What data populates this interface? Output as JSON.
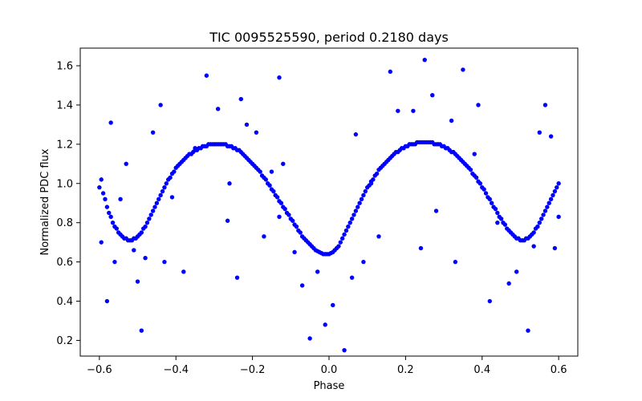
{
  "chart_data": {
    "type": "scatter",
    "title": "TIC 0095525590, period 0.2180 days",
    "xlabel": "Phase",
    "ylabel": "Normalized PDC flux",
    "xlim": [
      -0.65,
      0.65
    ],
    "ylim": [
      0.12,
      1.69
    ],
    "xticks": [
      -0.6,
      -0.4,
      -0.2,
      0.0,
      0.2,
      0.4,
      0.6
    ],
    "xtick_labels": [
      "−0.6",
      "−0.4",
      "−0.2",
      "0.0",
      "0.2",
      "0.4",
      "0.6"
    ],
    "yticks": [
      0.2,
      0.4,
      0.6,
      0.8,
      1.0,
      1.2,
      1.4,
      1.6
    ],
    "ytick_labels": [
      "0.2",
      "0.4",
      "0.6",
      "0.8",
      "1.0",
      "1.2",
      "1.4",
      "1.6"
    ],
    "grid": false,
    "legend": "none",
    "series": [
      {
        "marker_color": "#0000ff",
        "points": [
          [
            -0.6,
            0.98
          ],
          [
            -0.595,
            1.02
          ],
          [
            -0.59,
            0.95
          ],
          [
            -0.585,
            0.92
          ],
          [
            -0.58,
            0.88
          ],
          [
            -0.575,
            0.85
          ],
          [
            -0.57,
            0.83
          ],
          [
            -0.565,
            0.8
          ],
          [
            -0.56,
            0.78
          ],
          [
            -0.555,
            0.77
          ],
          [
            -0.55,
            0.75
          ],
          [
            -0.545,
            0.74
          ],
          [
            -0.54,
            0.73
          ],
          [
            -0.535,
            0.72
          ],
          [
            -0.53,
            0.72
          ],
          [
            -0.525,
            0.71
          ],
          [
            -0.52,
            0.71
          ],
          [
            -0.515,
            0.71
          ],
          [
            -0.51,
            0.72
          ],
          [
            -0.505,
            0.72
          ],
          [
            -0.5,
            0.73
          ],
          [
            -0.495,
            0.74
          ],
          [
            -0.49,
            0.75
          ],
          [
            -0.485,
            0.77
          ],
          [
            -0.48,
            0.78
          ],
          [
            -0.475,
            0.8
          ],
          [
            -0.47,
            0.82
          ],
          [
            -0.465,
            0.84
          ],
          [
            -0.46,
            0.86
          ],
          [
            -0.455,
            0.88
          ],
          [
            -0.45,
            0.9
          ],
          [
            -0.445,
            0.92
          ],
          [
            -0.44,
            0.94
          ],
          [
            -0.435,
            0.96
          ],
          [
            -0.43,
            0.98
          ],
          [
            -0.425,
            1.0
          ],
          [
            -0.42,
            1.02
          ],
          [
            -0.415,
            1.03
          ],
          [
            -0.41,
            1.05
          ],
          [
            -0.405,
            1.06
          ],
          [
            -0.4,
            1.08
          ],
          [
            -0.395,
            1.09
          ],
          [
            -0.39,
            1.1
          ],
          [
            -0.385,
            1.11
          ],
          [
            -0.38,
            1.12
          ],
          [
            -0.375,
            1.13
          ],
          [
            -0.37,
            1.14
          ],
          [
            -0.365,
            1.15
          ],
          [
            -0.36,
            1.15
          ],
          [
            -0.355,
            1.16
          ],
          [
            -0.35,
            1.17
          ],
          [
            -0.345,
            1.17
          ],
          [
            -0.34,
            1.18
          ],
          [
            -0.335,
            1.18
          ],
          [
            -0.33,
            1.19
          ],
          [
            -0.325,
            1.19
          ],
          [
            -0.32,
            1.19
          ],
          [
            -0.315,
            1.2
          ],
          [
            -0.31,
            1.2
          ],
          [
            -0.305,
            1.2
          ],
          [
            -0.3,
            1.2
          ],
          [
            -0.295,
            1.2
          ],
          [
            -0.29,
            1.2
          ],
          [
            -0.285,
            1.2
          ],
          [
            -0.28,
            1.2
          ],
          [
            -0.275,
            1.2
          ],
          [
            -0.27,
            1.2
          ],
          [
            -0.265,
            1.19
          ],
          [
            -0.26,
            1.19
          ],
          [
            -0.255,
            1.19
          ],
          [
            -0.25,
            1.18
          ],
          [
            -0.245,
            1.18
          ],
          [
            -0.24,
            1.17
          ],
          [
            -0.235,
            1.17
          ],
          [
            -0.23,
            1.16
          ],
          [
            -0.225,
            1.15
          ],
          [
            -0.22,
            1.14
          ],
          [
            -0.215,
            1.13
          ],
          [
            -0.21,
            1.12
          ],
          [
            -0.205,
            1.11
          ],
          [
            -0.2,
            1.1
          ],
          [
            -0.195,
            1.09
          ],
          [
            -0.19,
            1.08
          ],
          [
            -0.185,
            1.07
          ],
          [
            -0.18,
            1.06
          ],
          [
            -0.175,
            1.04
          ],
          [
            -0.17,
            1.03
          ],
          [
            -0.165,
            1.02
          ],
          [
            -0.16,
            1.0
          ],
          [
            -0.155,
            0.99
          ],
          [
            -0.15,
            0.97
          ],
          [
            -0.145,
            0.96
          ],
          [
            -0.14,
            0.94
          ],
          [
            -0.135,
            0.93
          ],
          [
            -0.13,
            0.91
          ],
          [
            -0.125,
            0.9
          ],
          [
            -0.12,
            0.88
          ],
          [
            -0.115,
            0.87
          ],
          [
            -0.11,
            0.85
          ],
          [
            -0.105,
            0.84
          ],
          [
            -0.1,
            0.82
          ],
          [
            -0.095,
            0.81
          ],
          [
            -0.09,
            0.79
          ],
          [
            -0.085,
            0.78
          ],
          [
            -0.08,
            0.76
          ],
          [
            -0.075,
            0.75
          ],
          [
            -0.07,
            0.73
          ],
          [
            -0.065,
            0.72
          ],
          [
            -0.06,
            0.71
          ],
          [
            -0.055,
            0.7
          ],
          [
            -0.05,
            0.69
          ],
          [
            -0.045,
            0.68
          ],
          [
            -0.04,
            0.67
          ],
          [
            -0.035,
            0.66
          ],
          [
            -0.03,
            0.655
          ],
          [
            -0.025,
            0.65
          ],
          [
            -0.02,
            0.645
          ],
          [
            -0.015,
            0.64
          ],
          [
            -0.01,
            0.64
          ],
          [
            -0.005,
            0.64
          ],
          [
            0.0,
            0.64
          ],
          [
            0.005,
            0.645
          ],
          [
            0.01,
            0.65
          ],
          [
            0.015,
            0.66
          ],
          [
            0.02,
            0.67
          ],
          [
            0.025,
            0.68
          ],
          [
            0.03,
            0.7
          ],
          [
            0.035,
            0.72
          ],
          [
            0.04,
            0.74
          ],
          [
            0.045,
            0.76
          ],
          [
            0.05,
            0.78
          ],
          [
            0.055,
            0.8
          ],
          [
            0.06,
            0.82
          ],
          [
            0.065,
            0.84
          ],
          [
            0.07,
            0.86
          ],
          [
            0.075,
            0.88
          ],
          [
            0.08,
            0.9
          ],
          [
            0.085,
            0.92
          ],
          [
            0.09,
            0.94
          ],
          [
            0.095,
            0.96
          ],
          [
            0.1,
            0.98
          ],
          [
            0.105,
            0.99
          ],
          [
            0.11,
            1.01
          ],
          [
            0.115,
            1.02
          ],
          [
            0.12,
            1.04
          ],
          [
            0.125,
            1.05
          ],
          [
            0.13,
            1.07
          ],
          [
            0.135,
            1.08
          ],
          [
            0.14,
            1.09
          ],
          [
            0.145,
            1.1
          ],
          [
            0.15,
            1.11
          ],
          [
            0.155,
            1.12
          ],
          [
            0.16,
            1.13
          ],
          [
            0.165,
            1.14
          ],
          [
            0.17,
            1.15
          ],
          [
            0.175,
            1.16
          ],
          [
            0.18,
            1.16
          ],
          [
            0.185,
            1.17
          ],
          [
            0.19,
            1.18
          ],
          [
            0.195,
            1.18
          ],
          [
            0.2,
            1.19
          ],
          [
            0.205,
            1.19
          ],
          [
            0.21,
            1.2
          ],
          [
            0.215,
            1.2
          ],
          [
            0.22,
            1.2
          ],
          [
            0.225,
            1.2
          ],
          [
            0.23,
            1.21
          ],
          [
            0.235,
            1.21
          ],
          [
            0.24,
            1.21
          ],
          [
            0.245,
            1.21
          ],
          [
            0.25,
            1.21
          ],
          [
            0.255,
            1.21
          ],
          [
            0.26,
            1.21
          ],
          [
            0.265,
            1.21
          ],
          [
            0.27,
            1.21
          ],
          [
            0.275,
            1.2
          ],
          [
            0.28,
            1.2
          ],
          [
            0.285,
            1.2
          ],
          [
            0.29,
            1.2
          ],
          [
            0.295,
            1.19
          ],
          [
            0.3,
            1.19
          ],
          [
            0.305,
            1.18
          ],
          [
            0.31,
            1.18
          ],
          [
            0.315,
            1.17
          ],
          [
            0.32,
            1.16
          ],
          [
            0.325,
            1.16
          ],
          [
            0.33,
            1.15
          ],
          [
            0.335,
            1.14
          ],
          [
            0.34,
            1.13
          ],
          [
            0.345,
            1.12
          ],
          [
            0.35,
            1.11
          ],
          [
            0.355,
            1.1
          ],
          [
            0.36,
            1.09
          ],
          [
            0.365,
            1.08
          ],
          [
            0.37,
            1.07
          ],
          [
            0.375,
            1.05
          ],
          [
            0.38,
            1.04
          ],
          [
            0.385,
            1.03
          ],
          [
            0.39,
            1.01
          ],
          [
            0.395,
            1.0
          ],
          [
            0.4,
            0.98
          ],
          [
            0.405,
            0.97
          ],
          [
            0.41,
            0.95
          ],
          [
            0.415,
            0.93
          ],
          [
            0.42,
            0.92
          ],
          [
            0.425,
            0.9
          ],
          [
            0.43,
            0.88
          ],
          [
            0.435,
            0.87
          ],
          [
            0.44,
            0.85
          ],
          [
            0.445,
            0.83
          ],
          [
            0.45,
            0.82
          ],
          [
            0.455,
            0.8
          ],
          [
            0.46,
            0.79
          ],
          [
            0.465,
            0.77
          ],
          [
            0.47,
            0.76
          ],
          [
            0.475,
            0.75
          ],
          [
            0.48,
            0.74
          ],
          [
            0.485,
            0.73
          ],
          [
            0.49,
            0.72
          ],
          [
            0.495,
            0.72
          ],
          [
            0.5,
            0.71
          ],
          [
            0.505,
            0.71
          ],
          [
            0.51,
            0.71
          ],
          [
            0.515,
            0.72
          ],
          [
            0.52,
            0.72
          ],
          [
            0.525,
            0.73
          ],
          [
            0.53,
            0.74
          ],
          [
            0.535,
            0.75
          ],
          [
            0.54,
            0.77
          ],
          [
            0.545,
            0.78
          ],
          [
            0.55,
            0.8
          ],
          [
            0.555,
            0.82
          ],
          [
            0.56,
            0.84
          ],
          [
            0.565,
            0.86
          ],
          [
            0.57,
            0.88
          ],
          [
            0.575,
            0.9
          ],
          [
            0.58,
            0.92
          ],
          [
            0.585,
            0.94
          ],
          [
            0.59,
            0.96
          ],
          [
            0.595,
            0.98
          ],
          [
            0.6,
            1.0
          ],
          [
            -0.57,
            1.31
          ],
          [
            -0.58,
            0.4
          ],
          [
            -0.545,
            0.92
          ],
          [
            -0.53,
            1.1
          ],
          [
            -0.51,
            0.66
          ],
          [
            -0.5,
            0.5
          ],
          [
            -0.49,
            0.25
          ],
          [
            -0.48,
            0.62
          ],
          [
            -0.46,
            1.26
          ],
          [
            -0.44,
            1.4
          ],
          [
            -0.43,
            0.6
          ],
          [
            -0.41,
            0.93
          ],
          [
            -0.38,
            0.55
          ],
          [
            -0.35,
            1.18
          ],
          [
            -0.32,
            1.55
          ],
          [
            -0.29,
            1.38
          ],
          [
            -0.265,
            0.81
          ],
          [
            -0.26,
            1.0
          ],
          [
            -0.24,
            0.52
          ],
          [
            -0.23,
            1.43
          ],
          [
            -0.215,
            1.3
          ],
          [
            -0.19,
            1.26
          ],
          [
            -0.17,
            0.73
          ],
          [
            -0.15,
            1.06
          ],
          [
            -0.13,
            1.54
          ],
          [
            -0.13,
            0.83
          ],
          [
            -0.12,
            1.1
          ],
          [
            -0.09,
            0.65
          ],
          [
            -0.07,
            0.48
          ],
          [
            -0.05,
            0.21
          ],
          [
            -0.03,
            0.55
          ],
          [
            -0.01,
            0.28
          ],
          [
            0.01,
            0.38
          ],
          [
            0.04,
            0.15
          ],
          [
            0.06,
            0.52
          ],
          [
            0.07,
            1.25
          ],
          [
            0.09,
            0.6
          ],
          [
            0.11,
            1.0
          ],
          [
            0.13,
            0.73
          ],
          [
            0.16,
            1.57
          ],
          [
            0.18,
            1.37
          ],
          [
            0.22,
            1.37
          ],
          [
            0.24,
            0.67
          ],
          [
            0.25,
            1.63
          ],
          [
            0.27,
            1.45
          ],
          [
            0.28,
            0.86
          ],
          [
            0.32,
            1.32
          ],
          [
            0.33,
            0.6
          ],
          [
            0.35,
            1.58
          ],
          [
            0.38,
            1.15
          ],
          [
            0.39,
            1.4
          ],
          [
            0.42,
            0.4
          ],
          [
            0.44,
            0.8
          ],
          [
            0.47,
            0.49
          ],
          [
            0.49,
            0.55
          ],
          [
            0.52,
            0.25
          ],
          [
            0.535,
            0.68
          ],
          [
            0.55,
            1.26
          ],
          [
            0.565,
            1.4
          ],
          [
            0.58,
            1.24
          ],
          [
            0.59,
            0.67
          ],
          [
            -0.595,
            0.7
          ],
          [
            0.6,
            0.83
          ],
          [
            -0.56,
            0.6
          ]
        ]
      }
    ]
  }
}
